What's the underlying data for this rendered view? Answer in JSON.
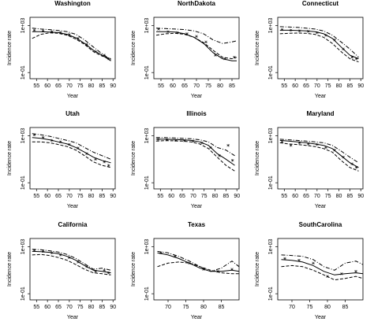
{
  "chart_data": [
    {
      "type": "line",
      "title": "Washington",
      "xlabel": "Year",
      "ylabel": "Incidence rate",
      "log_y": true,
      "xlim": [
        52,
        91
      ],
      "xticks": [
        55,
        60,
        65,
        70,
        75,
        80,
        85,
        90
      ],
      "ylim": [
        0.03,
        5000
      ],
      "yticks": [
        {
          "value": 0.1,
          "label": "1e-01"
        },
        {
          "value": 1000,
          "label": "1e+03"
        }
      ],
      "x": [
        53,
        57,
        61,
        65,
        69,
        73,
        77,
        81,
        85,
        89
      ],
      "series": [
        {
          "color": "#000",
          "dash": "solid",
          "values": [
            300,
            300,
            280,
            250,
            180,
            90,
            30,
            8,
            3,
            1
          ]
        },
        {
          "color": "#000",
          "dash": "dashed",
          "values": [
            80,
            180,
            240,
            220,
            150,
            70,
            25,
            6,
            2.5,
            1.5
          ]
        },
        {
          "color": "#000",
          "dash": "dashdot",
          "values": [
            600,
            500,
            450,
            380,
            300,
            180,
            60,
            15,
            4,
            1.2
          ]
        }
      ],
      "points": {
        "x": [
          54,
          58,
          62,
          66,
          70,
          74,
          78,
          82,
          86,
          88
        ],
        "y": [
          400,
          350,
          300,
          250,
          170,
          80,
          25,
          6,
          3,
          1.5
        ]
      }
    },
    {
      "type": "line",
      "title": "NorthDakota",
      "xlabel": "Year",
      "ylabel": "Incidence rate",
      "log_y": true,
      "xlim": [
        52,
        88
      ],
      "xticks": [
        55,
        60,
        65,
        70,
        75,
        80,
        85
      ],
      "ylim": [
        0.03,
        5000
      ],
      "yticks": [
        {
          "value": 0.1,
          "label": "1e-01"
        },
        {
          "value": 1000,
          "label": "1e+03"
        }
      ],
      "x": [
        53,
        57,
        61,
        65,
        69,
        73,
        77,
        81,
        85,
        87
      ],
      "series": [
        {
          "color": "#000",
          "dash": "solid",
          "values": [
            300,
            300,
            280,
            200,
            100,
            30,
            5,
            1.5,
            1,
            1
          ]
        },
        {
          "color": "#000",
          "dash": "dashed",
          "values": [
            150,
            200,
            220,
            180,
            100,
            35,
            8,
            2,
            1.5,
            2
          ]
        },
        {
          "color": "#000",
          "dash": "dashdot",
          "values": [
            600,
            550,
            500,
            450,
            350,
            200,
            60,
            30,
            40,
            50
          ]
        }
      ],
      "points": {
        "x": [
          54,
          58,
          62,
          66,
          70,
          74,
          78,
          82,
          86
        ],
        "y": [
          500,
          300,
          250,
          200,
          120,
          40,
          3,
          1.5,
          2
        ]
      }
    },
    {
      "type": "line",
      "title": "Connecticut",
      "xlabel": "Year",
      "ylabel": "Incidence rate",
      "log_y": true,
      "xlim": [
        52,
        91
      ],
      "xticks": [
        55,
        60,
        65,
        70,
        75,
        80,
        85,
        90
      ],
      "ylim": [
        0.03,
        5000
      ],
      "yticks": [
        {
          "value": 0.1,
          "label": "1e-01"
        },
        {
          "value": 1000,
          "label": "1e+03"
        }
      ],
      "x": [
        53,
        57,
        61,
        65,
        69,
        73,
        77,
        81,
        85,
        89
      ],
      "series": [
        {
          "color": "#000",
          "dash": "solid",
          "values": [
            400,
            400,
            380,
            350,
            300,
            200,
            80,
            15,
            3,
            1.5
          ]
        },
        {
          "color": "#000",
          "dash": "dashed",
          "values": [
            200,
            220,
            230,
            220,
            180,
            100,
            30,
            6,
            1.5,
            0.8
          ]
        },
        {
          "color": "#000",
          "dash": "dashdot",
          "values": [
            800,
            750,
            700,
            600,
            500,
            350,
            150,
            40,
            10,
            2
          ]
        }
      ],
      "points": {
        "x": [
          54,
          58,
          62,
          66,
          70,
          74,
          78,
          82,
          86,
          88
        ],
        "y": [
          450,
          400,
          350,
          320,
          250,
          150,
          60,
          10,
          2,
          1.5
        ]
      }
    },
    {
      "type": "line",
      "title": "Utah",
      "xlabel": "Year",
      "ylabel": "Incidence rate",
      "log_y": true,
      "xlim": [
        52,
        91
      ],
      "xticks": [
        55,
        60,
        65,
        70,
        75,
        80,
        85,
        90
      ],
      "ylim": [
        0.03,
        5000
      ],
      "yticks": [
        {
          "value": 0.1,
          "label": "1e-01"
        },
        {
          "value": 1000,
          "label": "1e+03"
        }
      ],
      "x": [
        53,
        57,
        61,
        65,
        69,
        73,
        77,
        81,
        85,
        89
      ],
      "series": [
        {
          "color": "#000",
          "dash": "solid",
          "values": [
            700,
            600,
            450,
            300,
            200,
            100,
            40,
            15,
            8,
            5
          ]
        },
        {
          "color": "#000",
          "dash": "dashed",
          "values": [
            300,
            300,
            250,
            180,
            120,
            60,
            20,
            6,
            3,
            2
          ]
        },
        {
          "color": "#000",
          "dash": "dashdot",
          "values": [
            1500,
            1200,
            900,
            600,
            400,
            250,
            100,
            40,
            20,
            10
          ]
        }
      ],
      "points": {
        "x": [
          54,
          58,
          62,
          66,
          70,
          74,
          78,
          82,
          86,
          88
        ],
        "y": [
          1200,
          700,
          400,
          300,
          180,
          90,
          30,
          10,
          6,
          3
        ]
      }
    },
    {
      "type": "line",
      "title": "Illinois",
      "xlabel": "Year",
      "ylabel": "Incidence rate",
      "log_y": true,
      "xlim": [
        52,
        91
      ],
      "xticks": [
        55,
        60,
        65,
        70,
        75,
        80,
        85,
        90
      ],
      "ylim": [
        0.03,
        5000
      ],
      "yticks": [
        {
          "value": 0.1,
          "label": "1e-01"
        },
        {
          "value": 1000,
          "label": "1e+03"
        }
      ],
      "x": [
        53,
        57,
        61,
        65,
        69,
        73,
        77,
        81,
        85,
        89
      ],
      "series": [
        {
          "color": "#000",
          "dash": "solid",
          "values": [
            500,
            500,
            480,
            450,
            400,
            300,
            150,
            30,
            10,
            3
          ]
        },
        {
          "color": "#000",
          "dash": "dashed",
          "values": [
            350,
            380,
            370,
            350,
            300,
            200,
            80,
            15,
            3,
            1
          ]
        },
        {
          "color": "#000",
          "dash": "dashdot",
          "values": [
            700,
            700,
            650,
            600,
            550,
            450,
            300,
            100,
            60,
            20
          ]
        }
      ],
      "points": {
        "x": [
          54,
          58,
          62,
          66,
          70,
          74,
          78,
          82,
          86,
          88
        ],
        "y": [
          500,
          450,
          400,
          380,
          350,
          250,
          100,
          20,
          150,
          8
        ]
      }
    },
    {
      "type": "line",
      "title": "Maryland",
      "xlabel": "Year",
      "ylabel": "Incidence rate",
      "log_y": true,
      "xlim": [
        52,
        91
      ],
      "xticks": [
        55,
        60,
        65,
        70,
        75,
        80,
        85,
        90
      ],
      "ylim": [
        0.03,
        5000
      ],
      "yticks": [
        {
          "value": 0.1,
          "label": "1e-01"
        },
        {
          "value": 1000,
          "label": "1e+03"
        }
      ],
      "x": [
        53,
        57,
        61,
        65,
        69,
        73,
        77,
        81,
        85,
        89
      ],
      "series": [
        {
          "color": "#000",
          "dash": "solid",
          "values": [
            400,
            350,
            300,
            250,
            200,
            150,
            80,
            20,
            5,
            2
          ]
        },
        {
          "color": "#000",
          "dash": "dashed",
          "values": [
            250,
            200,
            180,
            150,
            120,
            80,
            40,
            8,
            2,
            1
          ]
        },
        {
          "color": "#000",
          "dash": "dashdot",
          "values": [
            500,
            450,
            400,
            350,
            300,
            250,
            150,
            50,
            15,
            5
          ]
        }
      ],
      "points": {
        "x": [
          54,
          58,
          62,
          66,
          70,
          74,
          78,
          82,
          86,
          88
        ],
        "y": [
          300,
          150,
          250,
          200,
          180,
          100,
          60,
          15,
          4,
          2
        ]
      }
    },
    {
      "type": "line",
      "title": "California",
      "xlabel": "Year",
      "ylabel": "Incidence rate",
      "log_y": true,
      "xlim": [
        52,
        91
      ],
      "xticks": [
        55,
        60,
        65,
        70,
        75,
        80,
        85,
        90
      ],
      "ylim": [
        0.03,
        5000
      ],
      "yticks": [
        {
          "value": 0.1,
          "label": "1e-01"
        },
        {
          "value": 1000,
          "label": "1e+03"
        }
      ],
      "x": [
        53,
        57,
        61,
        65,
        69,
        73,
        77,
        81,
        85,
        89
      ],
      "series": [
        {
          "color": "#000",
          "dash": "solid",
          "values": [
            400,
            380,
            330,
            250,
            150,
            70,
            25,
            10,
            8,
            6
          ]
        },
        {
          "color": "#000",
          "dash": "dashed",
          "values": [
            200,
            220,
            180,
            120,
            70,
            30,
            12,
            6,
            5,
            4
          ]
        },
        {
          "color": "#000",
          "dash": "dashdot",
          "values": [
            600,
            550,
            450,
            350,
            220,
            100,
            35,
            12,
            15,
            10
          ]
        }
      ],
      "points": {
        "x": [
          54,
          58,
          62,
          66,
          70,
          74,
          78,
          82,
          86,
          88
        ],
        "y": [
          500,
          400,
          300,
          200,
          120,
          50,
          20,
          8,
          10,
          6
        ]
      }
    },
    {
      "type": "line",
      "title": "Texas",
      "xlabel": "Year",
      "ylabel": "Incidence rate",
      "log_y": true,
      "xlim": [
        66,
        90
      ],
      "xticks": [
        70,
        75,
        80,
        85
      ],
      "ylim": [
        0.03,
        5000
      ],
      "yticks": [
        {
          "value": 0.1,
          "label": "1e-01"
        },
        {
          "value": 1000,
          "label": "1e+03"
        }
      ],
      "x": [
        67,
        70,
        73,
        76,
        79,
        82,
        85,
        88,
        90
      ],
      "series": [
        {
          "color": "#000",
          "dash": "solid",
          "values": [
            300,
            200,
            100,
            40,
            15,
            8,
            8,
            10,
            8
          ]
        },
        {
          "color": "#000",
          "dash": "dashed",
          "values": [
            20,
            40,
            50,
            40,
            20,
            10,
            6,
            5,
            5
          ]
        },
        {
          "color": "#000",
          "dash": "dashdot",
          "values": [
            400,
            300,
            150,
            60,
            20,
            8,
            15,
            60,
            20
          ]
        }
      ],
      "points": {
        "x": [
          68,
          72,
          76,
          80,
          84,
          88
        ],
        "y": [
          300,
          150,
          40,
          12,
          8,
          12
        ]
      }
    },
    {
      "type": "line",
      "title": "SouthCarolina",
      "xlabel": "Year",
      "ylabel": "Incidence rate",
      "log_y": true,
      "xlim": [
        66,
        90
      ],
      "xticks": [
        70,
        75,
        80,
        85
      ],
      "ylim": [
        0.03,
        5000
      ],
      "yticks": [
        {
          "value": 0.1,
          "label": "1e-01"
        },
        {
          "value": 1000,
          "label": "1e+03"
        }
      ],
      "x": [
        67,
        70,
        73,
        76,
        79,
        82,
        85,
        88,
        90
      ],
      "series": [
        {
          "color": "#000",
          "dash": "solid",
          "values": [
            80,
            70,
            50,
            25,
            8,
            4,
            5,
            6,
            5
          ]
        },
        {
          "color": "#000",
          "dash": "dashed",
          "values": [
            20,
            25,
            20,
            10,
            4,
            1.5,
            2,
            3,
            2
          ]
        },
        {
          "color": "#000",
          "dash": "dashdot",
          "values": [
            200,
            180,
            150,
            80,
            20,
            10,
            40,
            60,
            30
          ]
        }
      ],
      "points": {
        "x": [
          68,
          72,
          76,
          80,
          84,
          88
        ],
        "y": [
          100,
          70,
          40,
          3,
          5,
          8
        ]
      }
    }
  ]
}
